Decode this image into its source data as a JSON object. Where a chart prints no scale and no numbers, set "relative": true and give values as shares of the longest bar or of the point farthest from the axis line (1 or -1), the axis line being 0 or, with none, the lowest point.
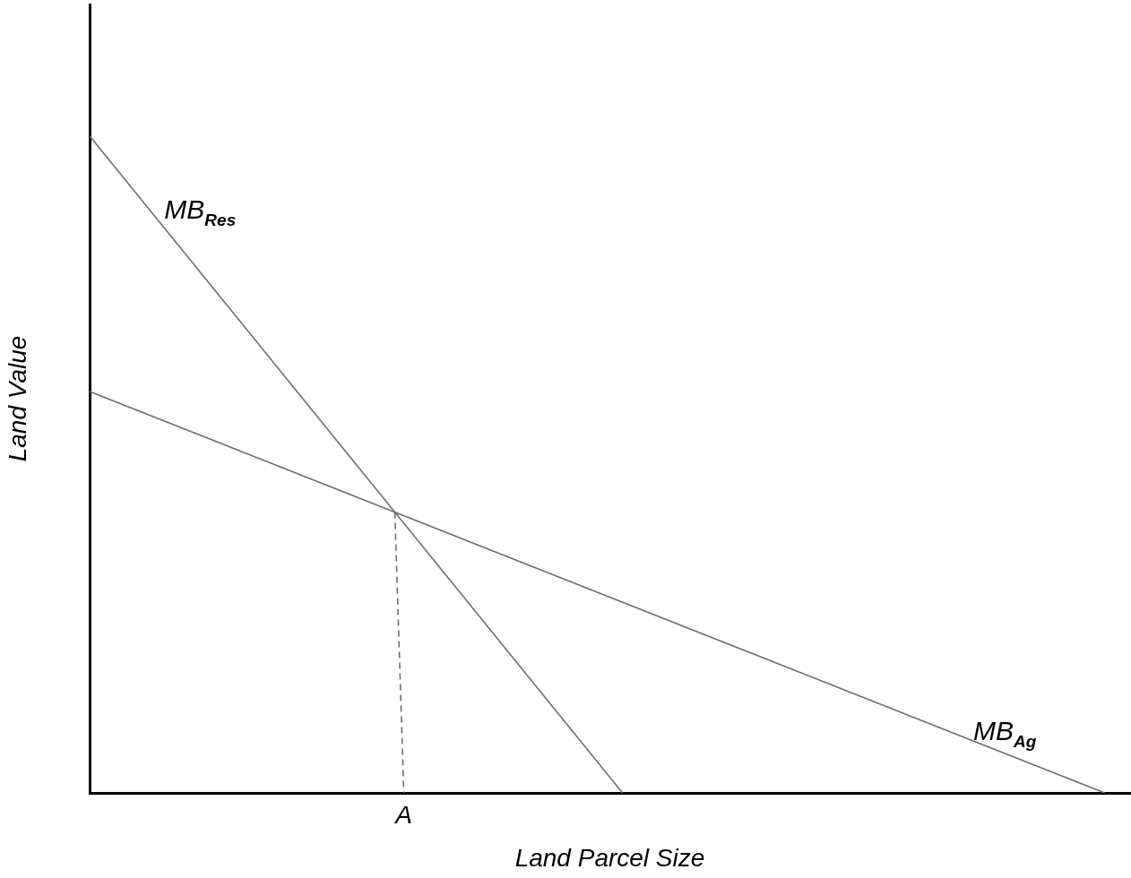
{
  "chart_data": {
    "type": "line",
    "relative": true,
    "xlabel": "Land Parcel Size",
    "ylabel": "Land Value",
    "annotations": [
      "A"
    ],
    "grid": false,
    "legend": false,
    "marker": "none",
    "categories": [
      null,
      null,
      null,
      null,
      null,
      null,
      null,
      null,
      null,
      null,
      null,
      null,
      null,
      null,
      null,
      null,
      null,
      null,
      null,
      null,
      null,
      null,
      null,
      null,
      null,
      null,
      null,
      null,
      null,
      null,
      null,
      null,
      null,
      null,
      null,
      null,
      null,
      null,
      null,
      null,
      null,
      null
    ],
    "series": [
      {
        "name": "MB$_{Res}$",
        "color": "#6e6e6e",
        "values": [
          1,
          null,
          null,
          null,
          null,
          null,
          null,
          null,
          null,
          null,
          null,
          null,
          null,
          null,
          null,
          null,
          null,
          null,
          null,
          null,
          null,
          0,
          null,
          null,
          null,
          null,
          null,
          null,
          null,
          null,
          null,
          null,
          null,
          null,
          null,
          null,
          null,
          null,
          null,
          null,
          null,
          null
        ]
      },
      {
        "name": "MB$_{Ag}$",
        "color": "#6e6e6e",
        "values": [
          0.611,
          null,
          null,
          null,
          null,
          null,
          null,
          null,
          null,
          null,
          null,
          null,
          null,
          null,
          null,
          null,
          null,
          null,
          null,
          null,
          null,
          null,
          null,
          null,
          null,
          null,
          null,
          null,
          null,
          null,
          null,
          null,
          null,
          null,
          null,
          null,
          null,
          null,
          null,
          null,
          0,
          null
        ]
      }
    ]
  }
}
